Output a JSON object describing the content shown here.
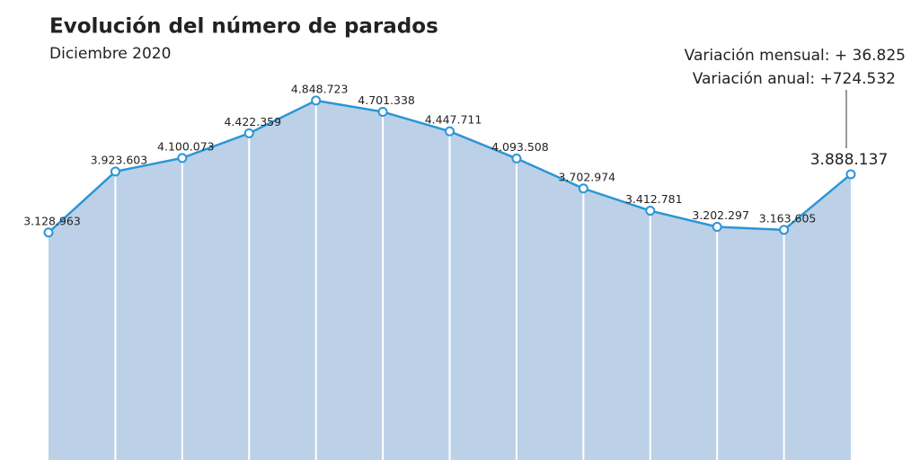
{
  "chart_data": {
    "type": "area",
    "title": "Evolución del número de parados",
    "subtitle": "Diciembre 2020",
    "annotations": [
      "Variación mensual: + 36.825",
      "Variación anual: +724.532"
    ],
    "categories": [
      null,
      null,
      null,
      null,
      null,
      null,
      null,
      null,
      null,
      null,
      null,
      null,
      null
    ],
    "values": [
      3128963,
      3923603,
      4100073,
      4422359,
      4848723,
      4701338,
      4447711,
      4093508,
      3702974,
      3412781,
      3202297,
      3163605,
      3888137
    ],
    "value_labels": [
      "3.128.963",
      "3.923.603",
      "4.100.073",
      "4.422.359",
      "4.848.723",
      "4.701.338",
      "4.447.711",
      "4.093.508",
      "3.702.974",
      "3.412.781",
      "3.202.297",
      "3.163.605",
      "3.888.137"
    ],
    "ylim": [
      0,
      5000000
    ],
    "color": "#2b96d6",
    "fill": "#bcd1e8"
  }
}
